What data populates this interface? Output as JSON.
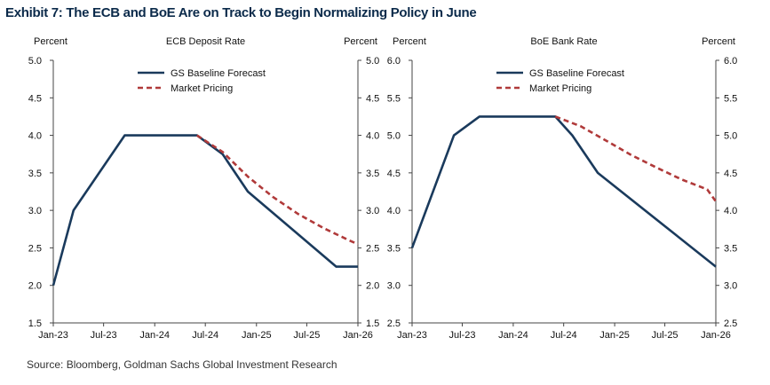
{
  "title": "Exhibit 7: The ECB and BoE Are on Track to Begin Normalizing Policy in June",
  "source": "Source: Bloomberg, Goldman Sachs Global Investment Research",
  "colors": {
    "baseline": "#1a3a5c",
    "market": "#b03a3a",
    "axis": "#444444"
  },
  "chart_data": [
    {
      "type": "line",
      "title": "ECB Deposit Rate",
      "ylabel_left": "Percent",
      "ylabel_right": "Percent",
      "x_ticks": [
        "Jan-23",
        "Jul-23",
        "Jan-24",
        "Jul-24",
        "Jan-25",
        "Jul-25",
        "Jan-26"
      ],
      "ylim_left": [
        1.5,
        5.0
      ],
      "ylim_right": [
        1.5,
        5.0
      ],
      "yticks_left": [
        "1.5",
        "2.0",
        "2.5",
        "3.0",
        "3.5",
        "4.0",
        "4.5",
        "5.0"
      ],
      "yticks_right": [
        "1.5",
        "2.0",
        "2.5",
        "3.0",
        "3.5",
        "4.0",
        "4.5",
        "5.0"
      ],
      "legend": "top-left",
      "series": [
        {
          "name": "GS Baseline Forecast",
          "style": "solid",
          "points": [
            [
              "2023-01-01",
              2.0
            ],
            [
              "2023-03-15",
              3.0
            ],
            [
              "2023-09-15",
              4.0
            ],
            [
              "2024-06-01",
              4.0
            ],
            [
              "2024-09-01",
              3.75
            ],
            [
              "2024-12-01",
              3.25
            ],
            [
              "2025-10-15",
              2.25
            ],
            [
              "2026-01-01",
              2.25
            ]
          ]
        },
        {
          "name": "Market Pricing",
          "style": "dashed",
          "points": [
            [
              "2024-06-01",
              4.0
            ],
            [
              "2024-09-01",
              3.78
            ],
            [
              "2024-12-01",
              3.45
            ],
            [
              "2025-03-01",
              3.18
            ],
            [
              "2025-06-01",
              2.95
            ],
            [
              "2025-09-01",
              2.76
            ],
            [
              "2025-12-01",
              2.6
            ],
            [
              "2026-01-01",
              2.55
            ]
          ]
        }
      ]
    },
    {
      "type": "line",
      "title": "BoE Bank Rate",
      "ylabel_left": "Percent",
      "ylabel_right": "Percent",
      "x_ticks": [
        "Jan-23",
        "Jul-23",
        "Jan-24",
        "Jul-24",
        "Jan-25",
        "Jul-25",
        "Jan-26"
      ],
      "ylim_left": [
        2.5,
        6.0
      ],
      "ylim_right": [
        2.5,
        6.0
      ],
      "yticks_left": [
        "2.5",
        "3.0",
        "3.5",
        "4.0",
        "4.5",
        "5.0",
        "5.5",
        "6.0"
      ],
      "yticks_right": [
        "2.5",
        "3.0",
        "3.5",
        "4.0",
        "4.5",
        "5.0",
        "5.5",
        "6.0"
      ],
      "legend": "top-left",
      "series": [
        {
          "name": "GS Baseline Forecast",
          "style": "solid",
          "points": [
            [
              "2023-01-01",
              3.5
            ],
            [
              "2023-06-01",
              5.0
            ],
            [
              "2023-09-01",
              5.25
            ],
            [
              "2024-06-01",
              5.25
            ],
            [
              "2024-08-01",
              5.0
            ],
            [
              "2024-11-01",
              4.5
            ],
            [
              "2026-01-01",
              3.25
            ]
          ]
        },
        {
          "name": "Market Pricing",
          "style": "dashed",
          "points": [
            [
              "2024-06-01",
              5.25
            ],
            [
              "2024-09-01",
              5.12
            ],
            [
              "2024-12-01",
              4.93
            ],
            [
              "2025-03-01",
              4.74
            ],
            [
              "2025-06-01",
              4.57
            ],
            [
              "2025-09-01",
              4.41
            ],
            [
              "2025-12-01",
              4.28
            ],
            [
              "2026-01-01",
              4.12
            ]
          ]
        }
      ]
    }
  ]
}
